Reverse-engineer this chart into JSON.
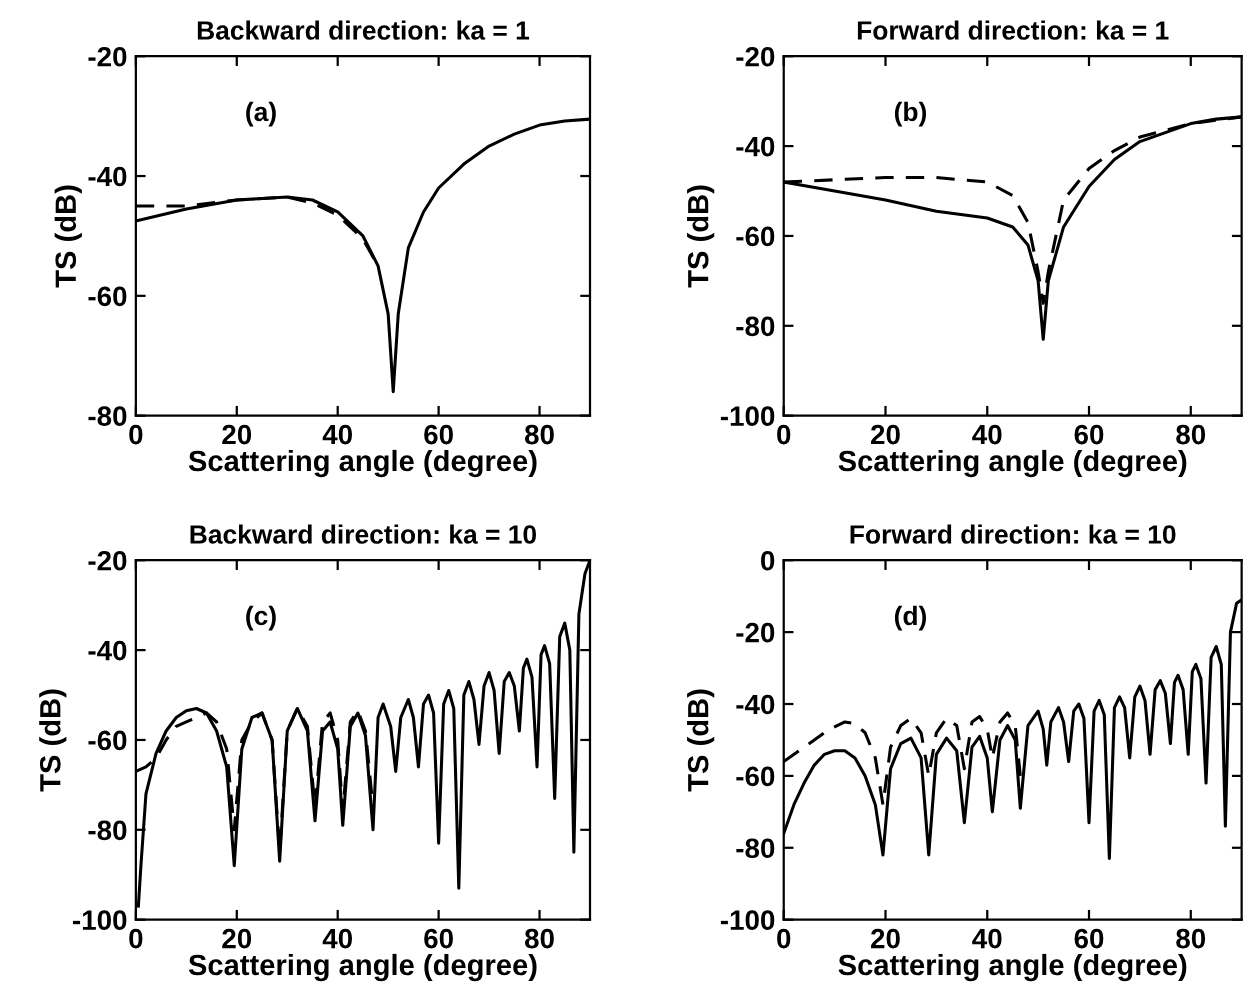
{
  "chart_data": [
    {
      "type": "line",
      "title": "Backward direction: ka = 1",
      "xlabel": "Scattering angle (degree)",
      "ylabel": "TS (dB)",
      "annotations": [
        "(a)"
      ],
      "xlim": [
        0,
        90
      ],
      "xticks": [
        0,
        20,
        40,
        60,
        80
      ],
      "ylim": [
        -80,
        -20
      ],
      "yticks": [
        -80,
        -60,
        -40,
        -20
      ],
      "grid": false,
      "legend": false,
      "series": [
        {
          "color": "#000000",
          "line_style": "solid",
          "x": [
            0,
            10,
            20,
            30,
            35,
            40,
            45,
            48,
            50,
            51,
            52,
            54,
            57,
            60,
            65,
            70,
            75,
            80,
            85,
            90
          ],
          "values": [
            -47.5,
            -45.5,
            -44,
            -43.5,
            -44,
            -46,
            -50,
            -55,
            -63,
            -76,
            -63,
            -52,
            -46,
            -42,
            -38,
            -35,
            -33,
            -31.5,
            -30.8,
            -30.5
          ]
        },
        {
          "color": "#000000",
          "line_style": "dashed",
          "x": [
            0,
            10,
            20,
            30,
            35,
            40,
            45,
            48
          ],
          "values": [
            -45,
            -45,
            -44,
            -43.5,
            -44.5,
            -46.5,
            -50.5,
            -55
          ]
        }
      ]
    },
    {
      "type": "line",
      "title": "Forward direction: ka = 1",
      "xlabel": "Scattering angle (degree)",
      "ylabel": "TS (dB)",
      "annotations": [
        "(b)"
      ],
      "xlim": [
        0,
        90
      ],
      "xticks": [
        0,
        20,
        40,
        60,
        80
      ],
      "ylim": [
        -100,
        -20
      ],
      "yticks": [
        -100,
        -80,
        -60,
        -40,
        -20
      ],
      "grid": false,
      "legend": false,
      "series": [
        {
          "color": "#000000",
          "line_style": "solid",
          "x": [
            0,
            10,
            20,
            30,
            40,
            45,
            48,
            50,
            51,
            52,
            55,
            60,
            65,
            70,
            75,
            80,
            85,
            90
          ],
          "values": [
            -48,
            -50,
            -52,
            -54.5,
            -56,
            -58,
            -62,
            -70,
            -83,
            -70,
            -58,
            -49,
            -43,
            -39,
            -37,
            -35,
            -34,
            -33.5
          ]
        },
        {
          "color": "#000000",
          "line_style": "dashed",
          "x": [
            0,
            10,
            20,
            30,
            40,
            45,
            48,
            50,
            51,
            52,
            55,
            60,
            65,
            70,
            80,
            90
          ],
          "values": [
            -48,
            -47.5,
            -47,
            -47,
            -48,
            -51,
            -57,
            -68,
            -75,
            -68,
            -52,
            -45,
            -41,
            -38,
            -35,
            -33.5
          ]
        }
      ]
    },
    {
      "type": "line",
      "title": "Backward direction: ka = 10",
      "xlabel": "Scattering angle (degree)",
      "ylabel": "TS (dB)",
      "annotations": [
        "(c)"
      ],
      "xlim": [
        0,
        90
      ],
      "xticks": [
        0,
        20,
        40,
        60,
        80
      ],
      "ylim": [
        -100,
        -20
      ],
      "yticks": [
        -100,
        -80,
        -60,
        -40,
        -20
      ],
      "grid": false,
      "legend": false,
      "series": [
        {
          "color": "#000000",
          "line_style": "solid",
          "x": [
            0.5,
            1,
            2,
            4,
            6,
            8,
            10,
            12,
            14,
            16,
            18,
            19.5,
            21,
            23,
            25,
            27,
            28.5,
            30,
            32,
            34,
            35.5,
            37,
            38.5,
            40,
            41,
            42.5,
            44,
            45.5,
            47,
            48,
            49,
            50.5,
            51.5,
            52.5,
            54,
            55,
            56,
            57,
            58,
            59,
            60,
            61,
            62,
            63,
            64,
            65,
            66,
            67,
            68,
            69,
            70,
            71,
            72,
            73,
            74,
            75,
            76,
            76.8,
            77.5,
            78.5,
            79.5,
            80.3,
            81,
            82,
            83,
            84,
            85,
            86,
            86.8,
            87.8,
            89,
            90
          ],
          "values": [
            -97,
            -88,
            -72,
            -63,
            -58,
            -55,
            -53.5,
            -53,
            -54,
            -58,
            -66,
            -88,
            -62,
            -55,
            -54,
            -60,
            -87,
            -58,
            -53,
            -58,
            -78,
            -58,
            -56,
            -62,
            -79,
            -57,
            -54,
            -59,
            -80,
            -55,
            -52,
            -57,
            -67,
            -55,
            -51,
            -55,
            -66,
            -52,
            -50,
            -54,
            -83,
            -52,
            -49,
            -53,
            -93,
            -50,
            -47,
            -51,
            -61,
            -48,
            -45,
            -49,
            -63,
            -47,
            -45,
            -48,
            -58,
            -44,
            -42,
            -46,
            -66,
            -41,
            -39,
            -43,
            -73,
            -37,
            -34,
            -40,
            -85,
            -32,
            -23,
            -20
          ]
        },
        {
          "color": "#000000",
          "line_style": "dashed",
          "x": [
            0,
            2,
            4,
            6,
            8,
            10,
            12,
            14,
            16,
            18,
            19.5,
            21,
            23,
            25,
            27,
            28.5,
            30,
            32,
            34,
            35.5,
            37,
            38.5,
            40,
            41,
            42.5,
            44,
            45.5,
            47
          ],
          "values": [
            -67,
            -66,
            -64,
            -60,
            -57,
            -56,
            -55,
            -54,
            -56,
            -62,
            -80,
            -60,
            -56,
            -54,
            -60,
            -85,
            -58,
            -53,
            -57,
            -75,
            -56,
            -54,
            -60,
            -76,
            -56,
            -53.5,
            -58,
            -75
          ]
        }
      ]
    },
    {
      "type": "line",
      "title": "Forward direction: ka = 10",
      "xlabel": "Scattering angle (degree)",
      "ylabel": "TS (dB)",
      "annotations": [
        "(d)"
      ],
      "xlim": [
        0,
        90
      ],
      "xticks": [
        0,
        20,
        40,
        60,
        80
      ],
      "ylim": [
        -100,
        0
      ],
      "yticks": [
        -100,
        -80,
        -60,
        -40,
        -20,
        0
      ],
      "grid": false,
      "legend": false,
      "series": [
        {
          "color": "#000000",
          "line_style": "solid",
          "x": [
            0,
            2,
            4,
            6,
            8,
            10,
            12,
            14,
            16,
            18,
            19.5,
            21,
            23,
            25,
            27,
            28.5,
            30,
            32,
            34,
            35.5,
            37,
            38.5,
            40,
            41,
            42.5,
            44,
            45.5,
            46.5,
            48,
            50,
            51,
            51.7,
            52.5,
            54,
            55,
            56,
            57,
            58,
            59,
            60,
            61,
            62,
            63,
            64,
            65,
            66,
            67,
            68,
            69,
            70,
            71,
            72,
            73,
            74,
            75,
            76,
            76.8,
            77.5,
            78.5,
            79.5,
            80.3,
            81,
            82,
            83,
            84,
            85,
            86,
            86.8,
            87.8,
            89,
            90
          ],
          "values": [
            -76,
            -68,
            -62,
            -57,
            -54,
            -53,
            -53,
            -55,
            -60,
            -68,
            -82,
            -58,
            -51,
            -49.5,
            -55,
            -82,
            -54,
            -49.5,
            -53,
            -73,
            -52,
            -49,
            -55,
            -70,
            -50,
            -46,
            -50,
            -69,
            -46,
            -42,
            -47,
            -57,
            -45,
            -41,
            -45,
            -56,
            -42,
            -40,
            -44,
            -73,
            -42,
            -39,
            -43,
            -83,
            -41,
            -38,
            -41,
            -55,
            -38,
            -35,
            -39,
            -54,
            -36,
            -33.5,
            -37,
            -51,
            -34,
            -32,
            -36,
            -54,
            -31,
            -29,
            -33,
            -62,
            -27,
            -24,
            -29,
            -74,
            -20,
            -12,
            -11
          ]
        },
        {
          "color": "#000000",
          "line_style": "dashed",
          "x": [
            0,
            3,
            6,
            9,
            12,
            14,
            16,
            18,
            19.5,
            21,
            23,
            25,
            27,
            28.5,
            30,
            32,
            34,
            35.5,
            37,
            38.5,
            40,
            41,
            42.5,
            44,
            45.5,
            46.5
          ],
          "values": [
            -56,
            -53,
            -50,
            -47,
            -45,
            -45.5,
            -48,
            -55,
            -68,
            -52,
            -46,
            -44,
            -48,
            -60,
            -48,
            -44,
            -46,
            -58,
            -45,
            -43.5,
            -47,
            -55,
            -45,
            -42.5,
            -46,
            -60
          ]
        }
      ]
    }
  ]
}
